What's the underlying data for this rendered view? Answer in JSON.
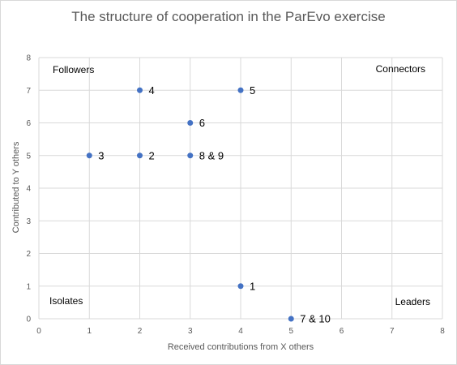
{
  "chart_data": {
    "type": "scatter",
    "title": "The structure of cooperation in the ParEvo exercise",
    "xlabel": "Received contributions from X others",
    "ylabel": "Contributed to Y others",
    "xlim": [
      0,
      8
    ],
    "ylim": [
      0,
      8
    ],
    "x_ticks": [
      "0",
      "1",
      "2",
      "3",
      "4",
      "5",
      "6",
      "7",
      "8"
    ],
    "y_ticks": [
      "0",
      "1",
      "2",
      "3",
      "4",
      "5",
      "6",
      "7",
      "8"
    ],
    "grid": true,
    "marker_color": "#4472c4",
    "gridline_color": "#d9d9d9",
    "points": [
      {
        "x": 1,
        "y": 5,
        "label": "3"
      },
      {
        "x": 2,
        "y": 5,
        "label": "2"
      },
      {
        "x": 2,
        "y": 7,
        "label": "4"
      },
      {
        "x": 3,
        "y": 6,
        "label": "6"
      },
      {
        "x": 3,
        "y": 5,
        "label": "8 & 9"
      },
      {
        "x": 4,
        "y": 7,
        "label": "5"
      },
      {
        "x": 4,
        "y": 1,
        "label": "1"
      },
      {
        "x": 5,
        "y": 0,
        "label": "7 & 10"
      }
    ],
    "annotations": {
      "top_left": "Followers",
      "top_right": "Connectors",
      "bottom_left": "Isolates",
      "bottom_right": "Leaders"
    }
  }
}
